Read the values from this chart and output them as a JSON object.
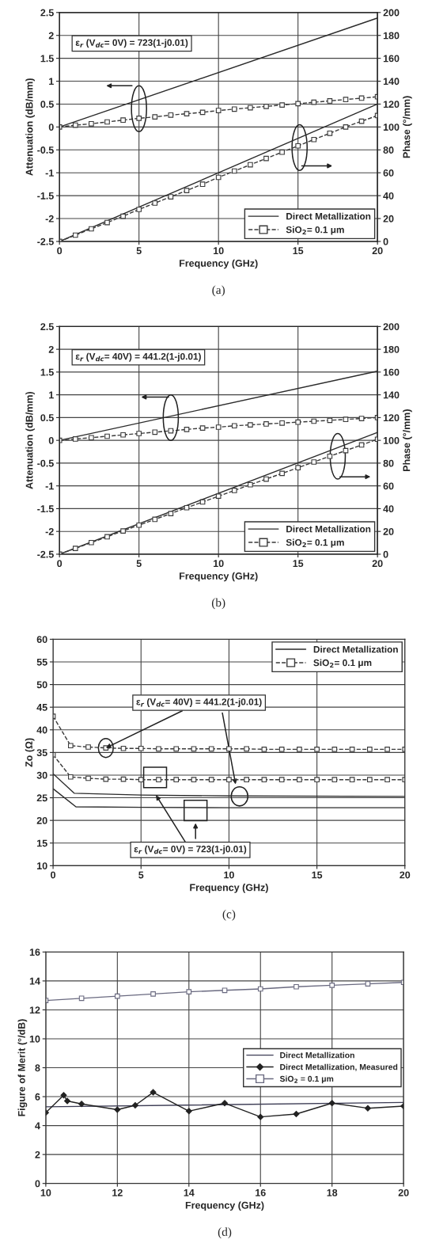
{
  "chart_data": [
    {
      "type": "line",
      "xlabel": "Frequency (GHz)",
      "ylabel": "Attenuation (dB/mm)",
      "y2label": "Phase (°/mm)",
      "xlim": [
        0,
        20
      ],
      "xticks": [
        0,
        5,
        10,
        15,
        20
      ],
      "ylim": [
        -2.5,
        2.5
      ],
      "yticks": [
        -2.5,
        -2,
        -1.5,
        -1,
        -0.5,
        0,
        0.5,
        1,
        1.5,
        2,
        2.5
      ],
      "y2lim": [
        0,
        200
      ],
      "y2ticks": [
        0,
        20,
        40,
        60,
        80,
        100,
        120,
        140,
        160,
        180,
        200
      ],
      "grid": true,
      "legend": "bottom right",
      "annotations": [
        "ε$_{r}$ (V$_{dc}$= 0V) = 723(1-j0.01)",
        "(a)"
      ],
      "series": [
        {
          "name": "Direct Metallization",
          "color": "#2b2b2b",
          "line_style": "solid",
          "x": [
            0,
            20
          ],
          "values": [
            0,
            2.38
          ]
        },
        {
          "name": "SiO$_{2}$= 0.1 μm",
          "color": "#3a3a3a",
          "line_style": "dashed",
          "marker": "square",
          "x": [
            0,
            1,
            2,
            3,
            4,
            5,
            6,
            7,
            8,
            9,
            10,
            11,
            12,
            13,
            14,
            15,
            16,
            17,
            18,
            19,
            20
          ],
          "values": [
            0,
            0.04,
            0.07,
            0.11,
            0.15,
            0.19,
            0.22,
            0.26,
            0.29,
            0.32,
            0.36,
            0.39,
            0.42,
            0.45,
            0.48,
            0.51,
            0.54,
            0.57,
            0.6,
            0.63,
            0.66
          ]
        },
        {
          "color": "#2b2b2b",
          "line_style": "solid",
          "axis": "y2",
          "x": [
            0,
            20
          ],
          "values": [
            0,
            120
          ]
        },
        {
          "color": "#3a3a3a",
          "line_style": "dashed",
          "marker": "square",
          "axis": "y2",
          "x": [
            0,
            1,
            2,
            3,
            4,
            5,
            6,
            7,
            8,
            9,
            10,
            11,
            12,
            13,
            14,
            15,
            16,
            17,
            18,
            19,
            20
          ],
          "values": [
            0,
            5.5,
            11,
            16.5,
            22,
            28,
            33.5,
            39,
            44.5,
            50,
            56,
            61.5,
            67,
            72.5,
            78,
            83.5,
            89,
            94.5,
            100,
            105,
            110
          ]
        }
      ]
    },
    {
      "type": "line",
      "xlabel": "Frequency (GHz)",
      "ylabel": "Attenuation (dB/mm)",
      "y2label": "Phase (°/mm)",
      "xlim": [
        0,
        20
      ],
      "xticks": [
        0,
        5,
        10,
        15,
        20
      ],
      "ylim": [
        -2.5,
        2.5
      ],
      "yticks": [
        -2.5,
        -2,
        -1.5,
        -1,
        -0.5,
        0,
        0.5,
        1,
        1.5,
        2,
        2.5
      ],
      "y2lim": [
        0,
        200
      ],
      "y2ticks": [
        0,
        20,
        40,
        60,
        80,
        100,
        120,
        140,
        160,
        180,
        200
      ],
      "grid": true,
      "legend": "bottom right",
      "annotations": [
        "ε$_{r}$ (V$_{dc}$= 40V) = 441.2(1-j0.01)",
        "(b)"
      ],
      "series": [
        {
          "name": "Direct Metallization",
          "color": "#2b2b2b",
          "line_style": "solid",
          "x": [
            0,
            20
          ],
          "values": [
            0,
            1.52
          ]
        },
        {
          "name": "SiO$_{2}$= 0.1 μm",
          "color": "#3a3a3a",
          "line_style": "dashed",
          "marker": "square",
          "x": [
            0,
            1,
            2,
            3,
            4,
            5,
            6,
            7,
            8,
            9,
            10,
            11,
            12,
            13,
            14,
            15,
            16,
            17,
            18,
            19,
            20
          ],
          "values": [
            0,
            0.03,
            0.06,
            0.09,
            0.12,
            0.15,
            0.18,
            0.21,
            0.24,
            0.27,
            0.29,
            0.32,
            0.34,
            0.36,
            0.38,
            0.4,
            0.42,
            0.44,
            0.46,
            0.48,
            0.5
          ]
        },
        {
          "color": "#2b2b2b",
          "line_style": "solid",
          "axis": "y2",
          "x": [
            0,
            20
          ],
          "values": [
            0,
            107
          ]
        },
        {
          "color": "#3a3a3a",
          "line_style": "dashed",
          "marker": "square",
          "axis": "y2",
          "x": [
            0,
            1,
            2,
            3,
            4,
            5,
            6,
            7,
            8,
            9,
            10,
            11,
            12,
            13,
            14,
            15,
            16,
            17,
            18,
            19,
            20
          ],
          "values": [
            0,
            5.1,
            10.2,
            15.3,
            20.4,
            25.5,
            30.6,
            35.7,
            40.8,
            45.9,
            51,
            56,
            61,
            66,
            71,
            76,
            81,
            86,
            91,
            96,
            101
          ]
        }
      ]
    },
    {
      "type": "line",
      "xlabel": "Frequency (GHz)",
      "ylabel": "Zo (Ω)",
      "xlim": [
        0,
        20
      ],
      "xticks": [
        0,
        5,
        10,
        15,
        20
      ],
      "ylim": [
        10,
        60
      ],
      "yticks": [
        10,
        15,
        20,
        25,
        30,
        35,
        40,
        45,
        50,
        55,
        60
      ],
      "grid": true,
      "legend": "top right",
      "annotations": [
        {
          "text": "ε$_{r}$ (V$_{dc}$= 40V) = 441.2(1-j0.01)",
          "x": 3,
          "y": 36
        },
        {
          "text": "ε$_{r}$ (V$_{dc}$= 0V) = 723(1-j0.01)",
          "x": 5.85,
          "y": 25.6
        },
        "(c)"
      ],
      "series": [
        {
          "name": "Direct Metallization",
          "color": "#2b2b2b",
          "line_style": "solid",
          "marker": "none",
          "x": [
            0,
            1.2,
            5,
            10,
            20
          ],
          "values": [
            30.3,
            26,
            25.6,
            25.4,
            25.3
          ]
        },
        {
          "name": "SiO$_{2}$= 0.1 μm",
          "color": "#3a3a3a",
          "line_style": "dashed",
          "marker": "square",
          "x": [
            0,
            1,
            2,
            3,
            4,
            5,
            6,
            7,
            8,
            9,
            10,
            11,
            12,
            13,
            14,
            15,
            16,
            17,
            18,
            19,
            20
          ],
          "values": [
            43,
            36.5,
            36.2,
            36,
            35.9,
            35.9,
            35.8,
            35.8,
            35.8,
            35.8,
            35.8,
            35.8,
            35.7,
            35.7,
            35.7,
            35.7,
            35.7,
            35.7,
            35.7,
            35.7,
            35.7
          ]
        },
        {
          "color": "#2b2b2b",
          "line_style": "solid",
          "marker": "none",
          "x": [
            0,
            1.3,
            5,
            10,
            20
          ],
          "values": [
            27,
            23,
            22.9,
            22.8,
            22.8
          ]
        },
        {
          "color": "#3a3a3a",
          "line_style": "dashed",
          "marker": "square",
          "x": [
            0,
            1,
            2,
            3,
            4,
            5,
            6,
            7,
            8,
            9,
            10,
            11,
            12,
            13,
            14,
            15,
            16,
            17,
            18,
            19,
            20
          ],
          "values": [
            34.5,
            29.6,
            29.3,
            29.1,
            29.1,
            29,
            29,
            29,
            29,
            29,
            29,
            29,
            29,
            29,
            29,
            29,
            29,
            29,
            29,
            29,
            29
          ]
        }
      ]
    },
    {
      "type": "line",
      "xlabel": "Frequency (GHz)",
      "ylabel": "Figure of Merit (°/dB)",
      "xlim": [
        10,
        20
      ],
      "xticks": [
        10,
        12,
        14,
        16,
        18,
        20
      ],
      "ylim": [
        0,
        16
      ],
      "yticks": [
        0,
        2,
        4,
        6,
        8,
        10,
        12,
        14,
        16
      ],
      "grid": true,
      "legend": "center right",
      "annotations": [
        "(d)"
      ],
      "series": [
        {
          "name": "Direct Metallization",
          "color": "#3d3d55",
          "line_style": "solid",
          "marker": "none",
          "x": [
            10,
            20
          ],
          "values": [
            5.3,
            5.6
          ]
        },
        {
          "name": "Direct Metallization, Measured",
          "color": "#222222",
          "line_style": "solid",
          "marker": "diamond",
          "x": [
            10,
            10.5,
            10.6,
            11,
            12,
            12.5,
            13,
            14,
            15,
            16,
            17,
            18,
            19,
            20
          ],
          "values": [
            4.9,
            6.1,
            5.7,
            5.5,
            5.1,
            5.4,
            6.3,
            5.0,
            5.55,
            4.6,
            4.8,
            5.55,
            5.2,
            5.35
          ]
        },
        {
          "name": "SiO$_{2}$ = 0.1 μm",
          "color": "#6a6a80",
          "line_style": "solid",
          "marker": "square",
          "x": [
            10,
            11,
            12,
            13,
            14,
            15,
            16,
            17,
            18,
            19,
            20
          ],
          "values": [
            12.65,
            12.8,
            12.95,
            13.1,
            13.25,
            13.35,
            13.45,
            13.6,
            13.7,
            13.8,
            13.9
          ]
        }
      ]
    }
  ]
}
